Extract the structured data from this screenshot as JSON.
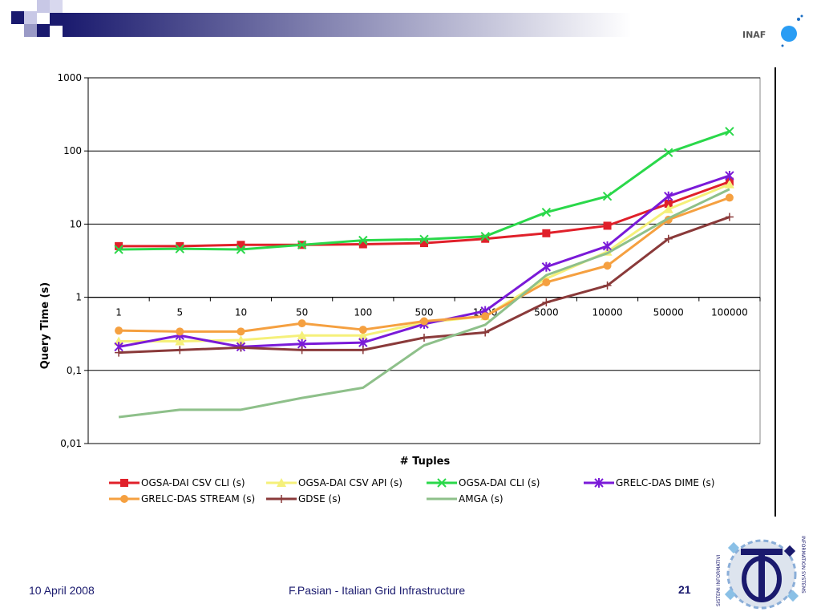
{
  "colors": {
    "band_dark": "#1a1a6e",
    "band_light": "#ffffff",
    "accent": "#2a9df4"
  },
  "logos": {
    "inaf_text": "INAF",
    "si_text_left": "SISTEMI INFORMATIVI",
    "si_text_right": "INFORMATION SYSTEMS"
  },
  "footer": {
    "date": "10 April 2008",
    "title": "F.Pasian - Italian Grid Infrastructure",
    "page": "21"
  },
  "chart_data": {
    "type": "line",
    "title": "",
    "xlabel": "# Tuples",
    "ylabel": "Query Time (s)",
    "yscale": "log",
    "ylim": [
      0.01,
      1000
    ],
    "y_ticks": [
      "0,01",
      "0,1",
      "1",
      "10",
      "100",
      "1000"
    ],
    "y_tick_values": [
      0.01,
      0.1,
      1,
      10,
      100,
      1000
    ],
    "categories": [
      "1",
      "5",
      "10",
      "50",
      "100",
      "500",
      "1000",
      "5000",
      "10000",
      "50000",
      "100000"
    ],
    "grid": true,
    "legend_position": "bottom",
    "series": [
      {
        "name": "OGSA-DAI CSV CLI (s)",
        "color": "#e0202a",
        "marker": "square",
        "values": [
          5.0,
          5.0,
          5.2,
          5.2,
          5.3,
          5.5,
          6.3,
          7.5,
          9.5,
          19,
          38
        ]
      },
      {
        "name": "OGSA-DAI CSV API (s)",
        "color": "#f5f07a",
        "marker": "triangle",
        "values": [
          0.25,
          0.25,
          0.26,
          0.3,
          0.3,
          0.45,
          0.55,
          1.8,
          4.2,
          16,
          35
        ]
      },
      {
        "name": "OGSA-DAI CLI (s)",
        "color": "#2ad84a",
        "marker": "x",
        "values": [
          4.5,
          4.6,
          4.5,
          5.2,
          6.0,
          6.2,
          6.8,
          14.5,
          24,
          95,
          185
        ]
      },
      {
        "name": "GRELC-DAS DIME (s)",
        "color": "#7a1ad8",
        "marker": "star",
        "values": [
          0.21,
          0.3,
          0.21,
          0.23,
          0.24,
          0.43,
          0.65,
          2.6,
          5.0,
          24,
          46
        ]
      },
      {
        "name": "GRELC-DAS STREAM (s)",
        "color": "#f5a040",
        "marker": "circle",
        "values": [
          0.35,
          0.34,
          0.34,
          0.44,
          0.36,
          0.47,
          0.55,
          1.6,
          2.7,
          11.5,
          23
        ]
      },
      {
        "name": "GDSE (s)",
        "color": "#8a3a3a",
        "marker": "plus",
        "values": [
          0.175,
          0.19,
          0.205,
          0.19,
          0.19,
          0.28,
          0.33,
          0.85,
          1.45,
          6.3,
          12.5
        ]
      },
      {
        "name": "AMGA (s)",
        "color": "#8ec08a",
        "marker": "none",
        "values": [
          0.023,
          0.029,
          0.029,
          0.042,
          0.058,
          0.22,
          0.42,
          2.0,
          4.0,
          12,
          30
        ]
      }
    ]
  }
}
